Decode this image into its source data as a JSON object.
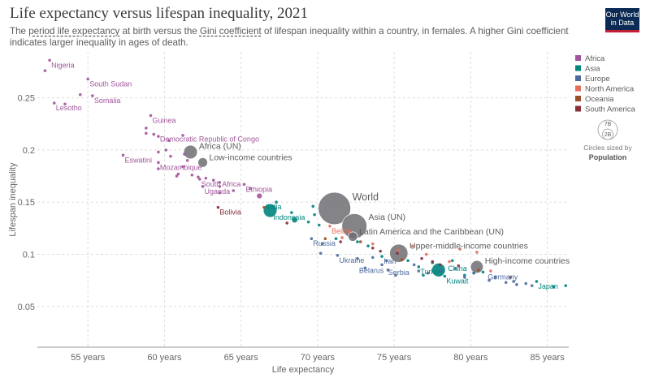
{
  "header": {
    "title": "Life expectancy versus lifespan inequality, 2021",
    "subtitle_parts": [
      "The ",
      "period life expectancy",
      " at birth versus the ",
      "Gini coefficient",
      " of lifespan inequality within a country, in females. A higher Gini coefficient indicates larger inequality in ages of death."
    ],
    "logo_lines": [
      "Our World",
      "in Data"
    ]
  },
  "colors": {
    "Africa": "#a2559c",
    "Asia": "#00847e",
    "Europe": "#4c6a9c",
    "North America": "#e56e5a",
    "Oceania": "#9a5129",
    "South America": "#883039",
    "Aggregate": "#6e6e73",
    "axis": "#666666",
    "grid": "#dddddd"
  },
  "legend": {
    "size_title": "Circles sized by",
    "size_metric": "Population",
    "size_values": [
      "7B",
      "2B"
    ]
  },
  "chart_data": {
    "type": "scatter",
    "xlabel": "Life expectancy",
    "ylabel": "Lifespan inequality",
    "xlim": [
      51.7,
      86.4
    ],
    "ylim": [
      0.011,
      0.294
    ],
    "x_ticks": [
      55,
      60,
      65,
      70,
      75,
      80,
      85
    ],
    "x_tick_labels": [
      "55 years",
      "60 years",
      "65 years",
      "70 years",
      "75 years",
      "80 years",
      "85 years"
    ],
    "y_ticks": [
      0.05,
      0.1,
      0.15,
      0.2,
      0.25
    ],
    "y_tick_labels": [
      "0.05",
      "0.1",
      "0.15",
      "0.2",
      "0.25"
    ],
    "legend_position": "right",
    "series": [
      {
        "name": "Africa",
        "points": [
          [
            52.5,
            0.286
          ],
          [
            52.2,
            0.276
          ],
          [
            54.5,
            0.253
          ],
          [
            55.0,
            0.268
          ],
          [
            52.8,
            0.245
          ],
          [
            53.5,
            0.244
          ],
          [
            55.3,
            0.252
          ],
          [
            59.1,
            0.233
          ],
          [
            58.8,
            0.221
          ],
          [
            58.8,
            0.216
          ],
          [
            59.3,
            0.215
          ],
          [
            59.6,
            0.213
          ],
          [
            60.3,
            0.209
          ],
          [
            61.2,
            0.214
          ],
          [
            57.3,
            0.195
          ],
          [
            59.6,
            0.198
          ],
          [
            59.6,
            0.188
          ],
          [
            59.6,
            0.182
          ],
          [
            60.1,
            0.2
          ],
          [
            60.4,
            0.194
          ],
          [
            61.3,
            0.196
          ],
          [
            61.5,
            0.19
          ],
          [
            61.2,
            0.184
          ],
          [
            60.9,
            0.177
          ],
          [
            60.8,
            0.175
          ],
          [
            61.8,
            0.176
          ],
          [
            62.2,
            0.174
          ],
          [
            62.7,
            0.173
          ],
          [
            63.2,
            0.171
          ],
          [
            63.6,
            0.169
          ],
          [
            62.3,
            0.172
          ],
          [
            62.5,
            0.165
          ],
          [
            63.6,
            0.165
          ],
          [
            64.5,
            0.161
          ],
          [
            65.2,
            0.167
          ],
          [
            63.6,
            0.159
          ],
          [
            65.6,
            0.163
          ]
        ],
        "labels": [
          {
            "text": "Nigeria",
            "x": 52.5,
            "y": 0.286
          },
          {
            "text": "South Sudan",
            "x": 55.0,
            "y": 0.268
          },
          {
            "text": "Somalia",
            "x": 55.3,
            "y": 0.252
          },
          {
            "text": "Lesotho",
            "x": 52.8,
            "y": 0.245
          },
          {
            "text": "Guinea",
            "x": 59.1,
            "y": 0.233
          },
          {
            "text": "Democratic Republic of Congo",
            "x": 59.6,
            "y": 0.215
          },
          {
            "text": "Eswatini",
            "x": 57.3,
            "y": 0.195
          },
          {
            "text": "Mozambique",
            "x": 59.6,
            "y": 0.188
          },
          {
            "text": "South Africa",
            "x": 62.3,
            "y": 0.172
          },
          {
            "text": "Uganda",
            "x": 62.5,
            "y": 0.165
          },
          {
            "text": "Ethiopia",
            "x": 65.2,
            "y": 0.167
          }
        ]
      },
      {
        "name": "Asia",
        "points": [
          [
            67.3,
            0.15
          ],
          [
            68.3,
            0.14
          ],
          [
            69.4,
            0.131
          ],
          [
            70.1,
            0.128
          ],
          [
            69.7,
            0.146
          ],
          [
            69.8,
            0.138
          ],
          [
            71.2,
            0.115
          ],
          [
            72.6,
            0.112
          ],
          [
            73.3,
            0.108
          ],
          [
            74.2,
            0.098
          ],
          [
            75.9,
            0.094
          ],
          [
            76.6,
            0.088
          ],
          [
            76.9,
            0.08
          ],
          [
            78.3,
            0.079
          ],
          [
            79.6,
            0.08
          ],
          [
            80.2,
            0.082
          ],
          [
            80.8,
            0.083
          ],
          [
            84.3,
            0.074
          ],
          [
            85.4,
            0.069
          ],
          [
            86.2,
            0.07
          ],
          [
            77.5,
            0.092
          ],
          [
            78.8,
            0.094
          ]
        ],
        "labels": [
          {
            "text": "India",
            "x": 66.5,
            "y": 0.15
          },
          {
            "text": "Indonesia",
            "x": 67.0,
            "y": 0.14
          },
          {
            "text": "China",
            "x": 78.4,
            "y": 0.091
          },
          {
            "text": "Turkey",
            "x": 76.6,
            "y": 0.088
          },
          {
            "text": "Kuwait",
            "x": 78.3,
            "y": 0.079
          },
          {
            "text": "Japan",
            "x": 84.3,
            "y": 0.074
          }
        ]
      },
      {
        "name": "Europe",
        "points": [
          [
            69.6,
            0.115
          ],
          [
            70.3,
            0.11
          ],
          [
            70.2,
            0.101
          ],
          [
            71.3,
            0.099
          ],
          [
            72.6,
            0.096
          ],
          [
            73.6,
            0.097
          ],
          [
            74.5,
            0.094
          ],
          [
            74.2,
            0.09
          ],
          [
            73.1,
            0.087
          ],
          [
            74.6,
            0.085
          ],
          [
            75.1,
            0.08
          ],
          [
            76.6,
            0.084
          ],
          [
            77.2,
            0.082
          ],
          [
            78.0,
            0.084
          ],
          [
            79.6,
            0.078
          ],
          [
            80.2,
            0.082
          ],
          [
            81.2,
            0.075
          ],
          [
            81.6,
            0.078
          ],
          [
            82.3,
            0.073
          ],
          [
            83.0,
            0.071
          ],
          [
            83.6,
            0.072
          ],
          [
            84.0,
            0.07
          ],
          [
            82.8,
            0.074
          ],
          [
            76.3,
            0.09
          ],
          [
            79.0,
            0.086
          ]
        ],
        "labels": [
          {
            "text": "Russia",
            "x": 69.6,
            "y": 0.115
          },
          {
            "text": "Ukraine",
            "x": 71.3,
            "y": 0.099
          },
          {
            "text": "Iran",
            "x": 74.2,
            "y": 0.098
          },
          {
            "text": "Belarus",
            "x": 72.6,
            "y": 0.089
          },
          {
            "text": "Serbia",
            "x": 74.5,
            "y": 0.087
          },
          {
            "text": "Germany",
            "x": 81.0,
            "y": 0.083
          }
        ]
      },
      {
        "name": "North America",
        "points": [
          [
            70.8,
            0.127
          ],
          [
            71.6,
            0.116
          ],
          [
            73.6,
            0.11
          ],
          [
            75.3,
            0.104
          ],
          [
            76.2,
            0.108
          ],
          [
            77.1,
            0.1
          ],
          [
            79.3,
            0.105
          ],
          [
            80.4,
            0.102
          ],
          [
            78.6,
            0.093
          ],
          [
            81.3,
            0.084
          ]
        ],
        "labels": [
          {
            "text": "Belize",
            "x": 70.8,
            "y": 0.127
          }
        ]
      },
      {
        "name": "Oceania",
        "points": [
          [
            66.5,
            0.145
          ],
          [
            70.5,
            0.115
          ],
          [
            72.8,
            0.112
          ],
          [
            75.5,
            0.095
          ],
          [
            80.5,
            0.085
          ],
          [
            82.6,
            0.078
          ]
        ],
        "labels": []
      },
      {
        "name": "South America",
        "points": [
          [
            63.5,
            0.145
          ],
          [
            68.0,
            0.13
          ],
          [
            71.5,
            0.112
          ],
          [
            73.6,
            0.106
          ],
          [
            74.1,
            0.103
          ],
          [
            75.2,
            0.101
          ],
          [
            76.8,
            0.096
          ],
          [
            78.0,
            0.09
          ],
          [
            77.5,
            0.093
          ],
          [
            79.2,
            0.089
          ]
        ],
        "labels": [
          {
            "text": "Bolivia",
            "x": 63.5,
            "y": 0.145
          }
        ]
      }
    ],
    "aggregates": [
      {
        "name": "Africa (UN)",
        "x": 61.7,
        "y": 0.198,
        "population_billion": 1.4
      },
      {
        "name": "Low-income countries",
        "x": 62.5,
        "y": 0.188,
        "population_billion": 0.7
      },
      {
        "name": "World",
        "x": 71.1,
        "y": 0.144,
        "population_billion": 7.9
      },
      {
        "name": "Asia (UN)",
        "x": 72.4,
        "y": 0.127,
        "population_billion": 4.7
      },
      {
        "name": "Latin America and the Caribbean (UN)",
        "x": 72.3,
        "y": 0.117,
        "population_billion": 0.66
      },
      {
        "name": "Upper-middle-income countries",
        "x": 75.3,
        "y": 0.101,
        "population_billion": 2.5
      },
      {
        "name": "High-income countries",
        "x": 80.4,
        "y": 0.088,
        "population_billion": 1.2
      }
    ],
    "countries_with_circles": [
      {
        "name": "India",
        "series": "Asia",
        "x": 66.9,
        "y": 0.142,
        "population_billion": 1.4
      },
      {
        "name": "China",
        "series": "Asia",
        "x": 77.9,
        "y": 0.085,
        "population_billion": 1.4
      },
      {
        "name": "Indonesia",
        "series": "Asia",
        "x": 68.5,
        "y": 0.133,
        "population_billion": 0.27
      },
      {
        "name": "Nigeria-circle",
        "series": "Africa",
        "x": 66.2,
        "y": 0.156,
        "population_billion": 0.21
      }
    ]
  }
}
